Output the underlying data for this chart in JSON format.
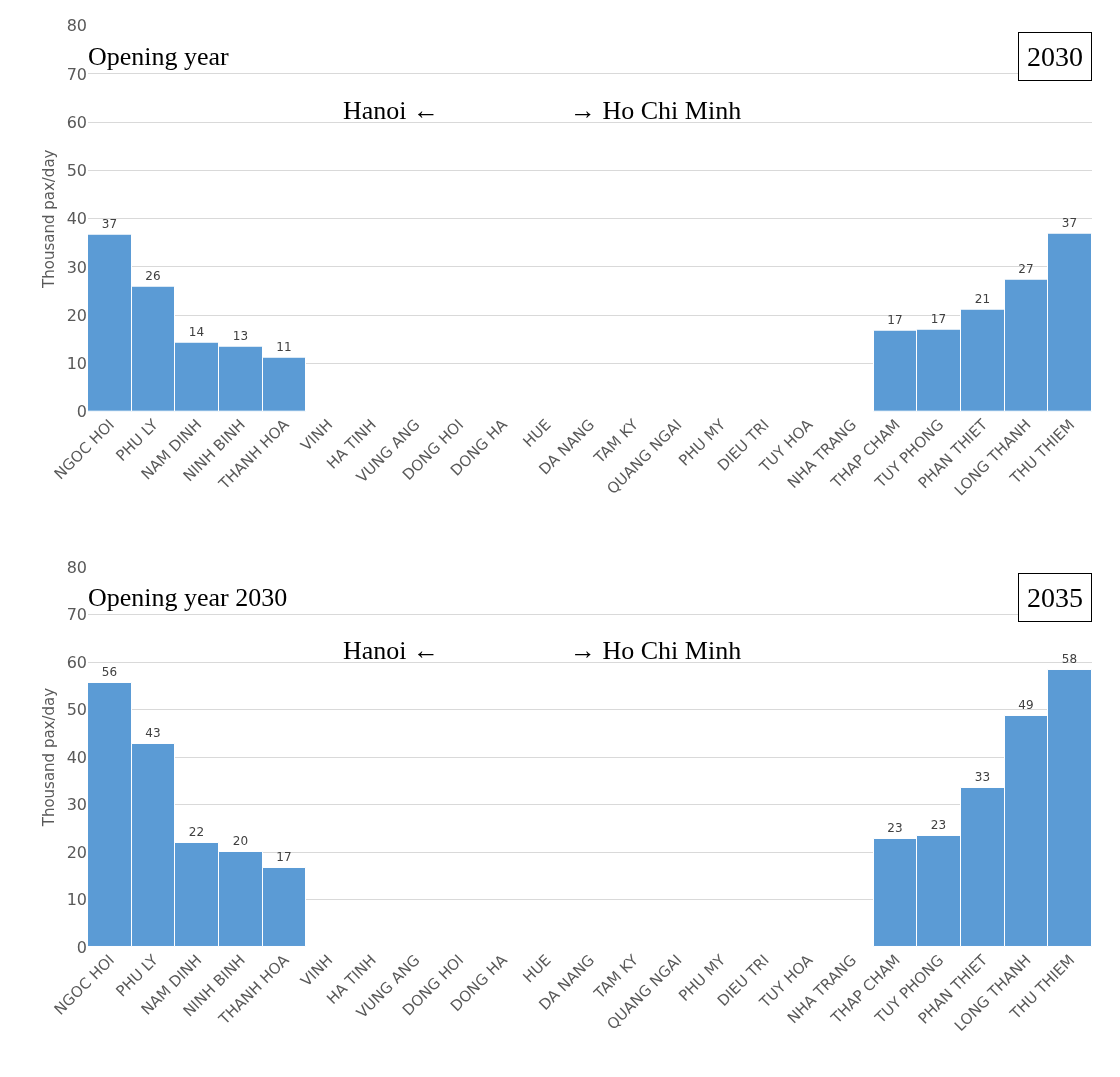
{
  "chart_data": [
    {
      "type": "bar",
      "ylabel": "Thousand pax/day",
      "categories": [
        "NGOC HOI",
        "PHU LY",
        "NAM DINH",
        "NINH BINH",
        "THANH HOA",
        "VINH",
        "HA TINH",
        "VUNG ANG",
        "DONG HOI",
        "DONG HA",
        "HUE",
        "DA NANG",
        "TAM KY",
        "QUANG NGAI",
        "PHU MY",
        "DIEU TRI",
        "TUY HOA",
        "NHA TRANG",
        "THAP CHAM",
        "TUY PHONG",
        "PHAN THIET",
        "LONG THANH",
        "THU THIEM"
      ],
      "values": [
        36.7,
        26,
        14.4,
        13.4,
        11.3,
        null,
        null,
        null,
        null,
        null,
        null,
        null,
        null,
        null,
        null,
        null,
        null,
        null,
        16.7,
        17,
        21.2,
        27.4,
        37
      ],
      "value_labels": [
        "37",
        "26",
        "14",
        "13",
        "11",
        null,
        null,
        null,
        null,
        null,
        null,
        null,
        null,
        null,
        null,
        null,
        null,
        null,
        "17",
        "17",
        "21",
        "27",
        "37"
      ],
      "color": "#5b9bd5",
      "ylim": [
        0,
        80
      ],
      "yticks": [
        0,
        10,
        20,
        30,
        40,
        50,
        60,
        70,
        80
      ],
      "grid": "y",
      "annotations": [
        "Opening year",
        "2030",
        "Hanoi ←",
        "→ Ho Chi Minh"
      ]
    },
    {
      "type": "bar",
      "ylabel": "Thousand pax/day",
      "categories": [
        "NGOC HOI",
        "PHU LY",
        "NAM DINH",
        "NINH BINH",
        "THANH HOA",
        "VINH",
        "HA TINH",
        "VUNG ANG",
        "DONG HOI",
        "DONG HA",
        "HUE",
        "DA NANG",
        "TAM KY",
        "QUANG NGAI",
        "PHU MY",
        "DIEU TRI",
        "TUY HOA",
        "NHA TRANG",
        "THAP CHAM",
        "TUY PHONG",
        "PHAN THIET",
        "LONG THANH",
        "THU THIEM"
      ],
      "values": [
        55.6,
        42.8,
        22,
        20,
        16.6,
        null,
        null,
        null,
        null,
        null,
        null,
        null,
        null,
        null,
        null,
        null,
        null,
        null,
        22.8,
        23.3,
        33.4,
        48.6,
        58.4
      ],
      "value_labels": [
        "56",
        "43",
        "22",
        "20",
        "17",
        null,
        null,
        null,
        null,
        null,
        null,
        null,
        null,
        null,
        null,
        null,
        null,
        null,
        "23",
        "23",
        "33",
        "49",
        "58"
      ],
      "color": "#5b9bd5",
      "ylim": [
        0,
        80
      ],
      "yticks": [
        0,
        10,
        20,
        30,
        40,
        50,
        60,
        70,
        80
      ],
      "grid": "y",
      "annotations": [
        "Opening year 2030",
        "2035",
        "Hanoi ←",
        "→ Ho Chi Minh"
      ]
    }
  ]
}
